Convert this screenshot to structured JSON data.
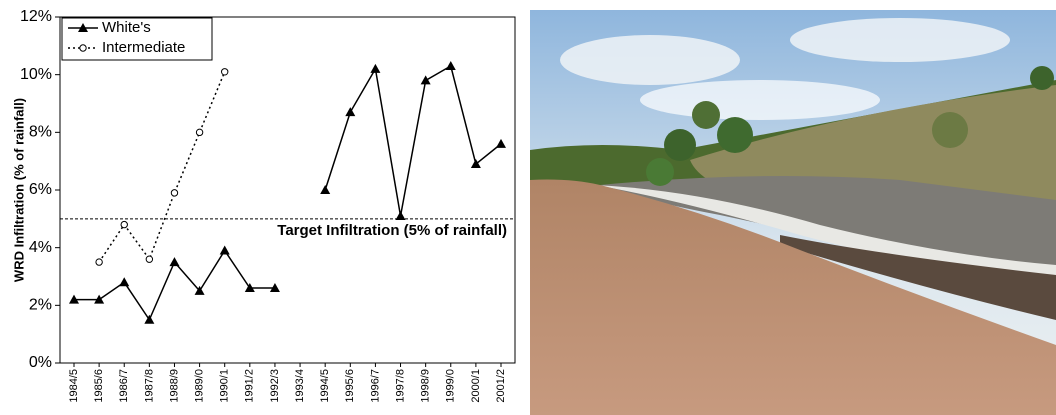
{
  "chart_data": {
    "type": "line",
    "y_label": "WRD Infiltration (% of rainfall)",
    "categories": [
      "1984/5",
      "1985/6",
      "1986/7",
      "1987/8",
      "1988/9",
      "1989/0",
      "1990/1",
      "1991/2",
      "1992/3",
      "1993/4",
      "1994/5",
      "1995/6",
      "1996/7",
      "1997/8",
      "1998/9",
      "1999/0",
      "2000/1",
      "2001/2"
    ],
    "series": [
      {
        "name": "White's",
        "color": "#000000",
        "line_style": "solid",
        "marker": "triangle",
        "values": [
          2.2,
          2.2,
          2.8,
          1.5,
          3.5,
          2.5,
          3.9,
          2.6,
          2.6,
          null,
          6.0,
          8.7,
          10.2,
          5.1,
          9.8,
          10.3,
          6.9,
          7.6
        ]
      },
      {
        "name": "Intermediate",
        "color": "#000000",
        "line_style": "dotted",
        "marker": "open-circle",
        "values": [
          null,
          3.5,
          4.8,
          3.6,
          5.9,
          8.0,
          10.1,
          null,
          null,
          null,
          null,
          null,
          null,
          null,
          null,
          null,
          null,
          null
        ]
      }
    ],
    "target": {
      "value": 5,
      "label": "Target Infiltration (5% of rainfall)"
    },
    "ylim": [
      0,
      12
    ],
    "yticks": [
      {
        "value": 0,
        "label": "0%"
      },
      {
        "value": 2,
        "label": "2%"
      },
      {
        "value": 4,
        "label": "4%"
      },
      {
        "value": 6,
        "label": "6%"
      },
      {
        "value": 8,
        "label": "8%"
      },
      {
        "value": 10,
        "label": "10%"
      },
      {
        "value": 12,
        "label": "12%"
      }
    ],
    "legend": "top-left",
    "grid": false
  }
}
